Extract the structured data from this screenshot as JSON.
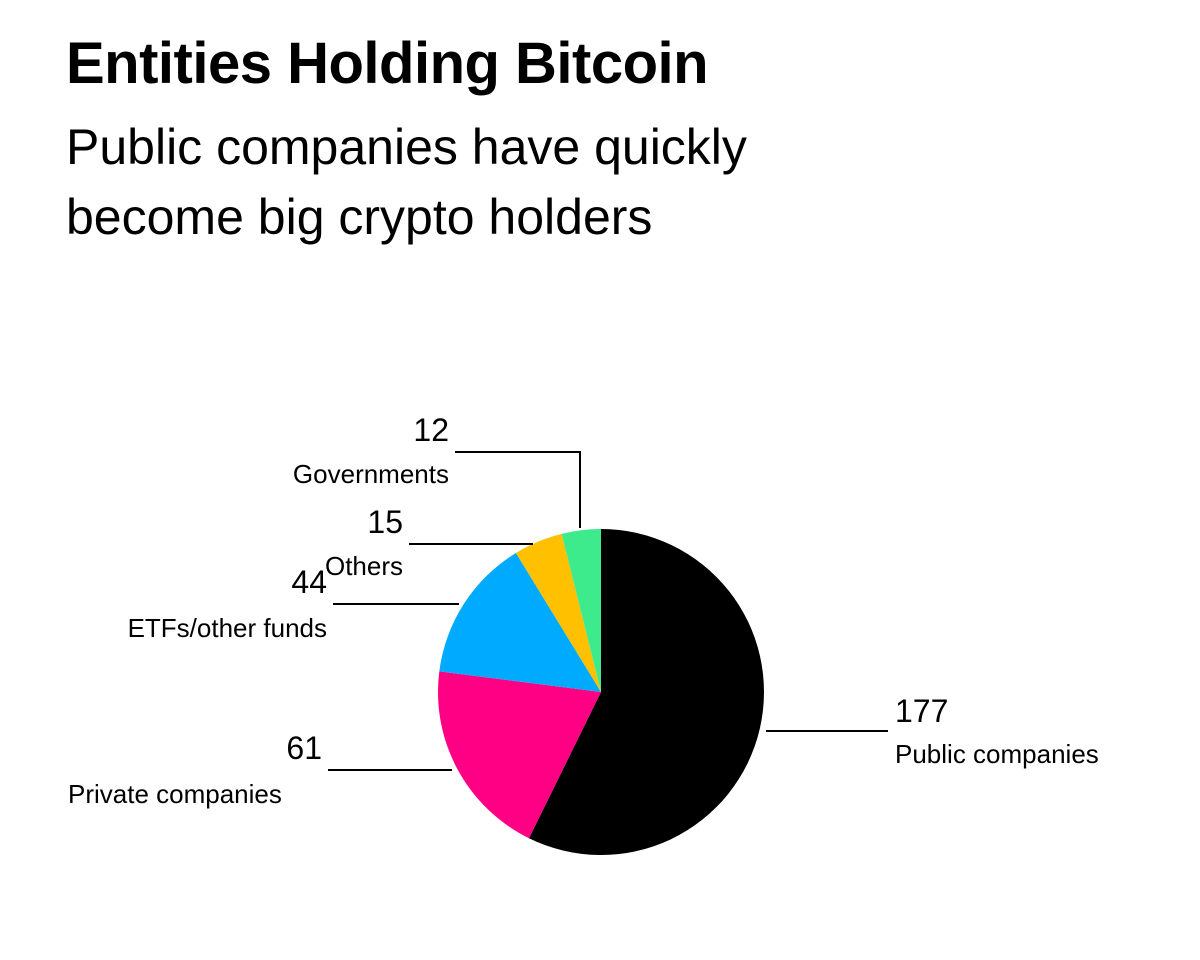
{
  "header": {
    "title": "Entities Holding Bitcoin",
    "subtitle_line1": "Public companies have quickly",
    "subtitle_line2": "become big crypto holders"
  },
  "chart_data": {
    "type": "pie",
    "title": "Entities Holding Bitcoin",
    "subtitle": "Public companies have quickly become big crypto holders",
    "start": "12 o'clock",
    "direction": "clockwise",
    "legend": "none",
    "slices": [
      {
        "label": "Public companies",
        "value": 177,
        "color": "#000000"
      },
      {
        "label": "Private companies",
        "value": 61,
        "color": "#ff0085"
      },
      {
        "label": "ETFs/other funds",
        "value": 44,
        "color": "#00aaff"
      },
      {
        "label": "Others",
        "value": 15,
        "color": "#ffc000"
      },
      {
        "label": "Governments",
        "value": 12,
        "color": "#3deb8c"
      }
    ]
  }
}
